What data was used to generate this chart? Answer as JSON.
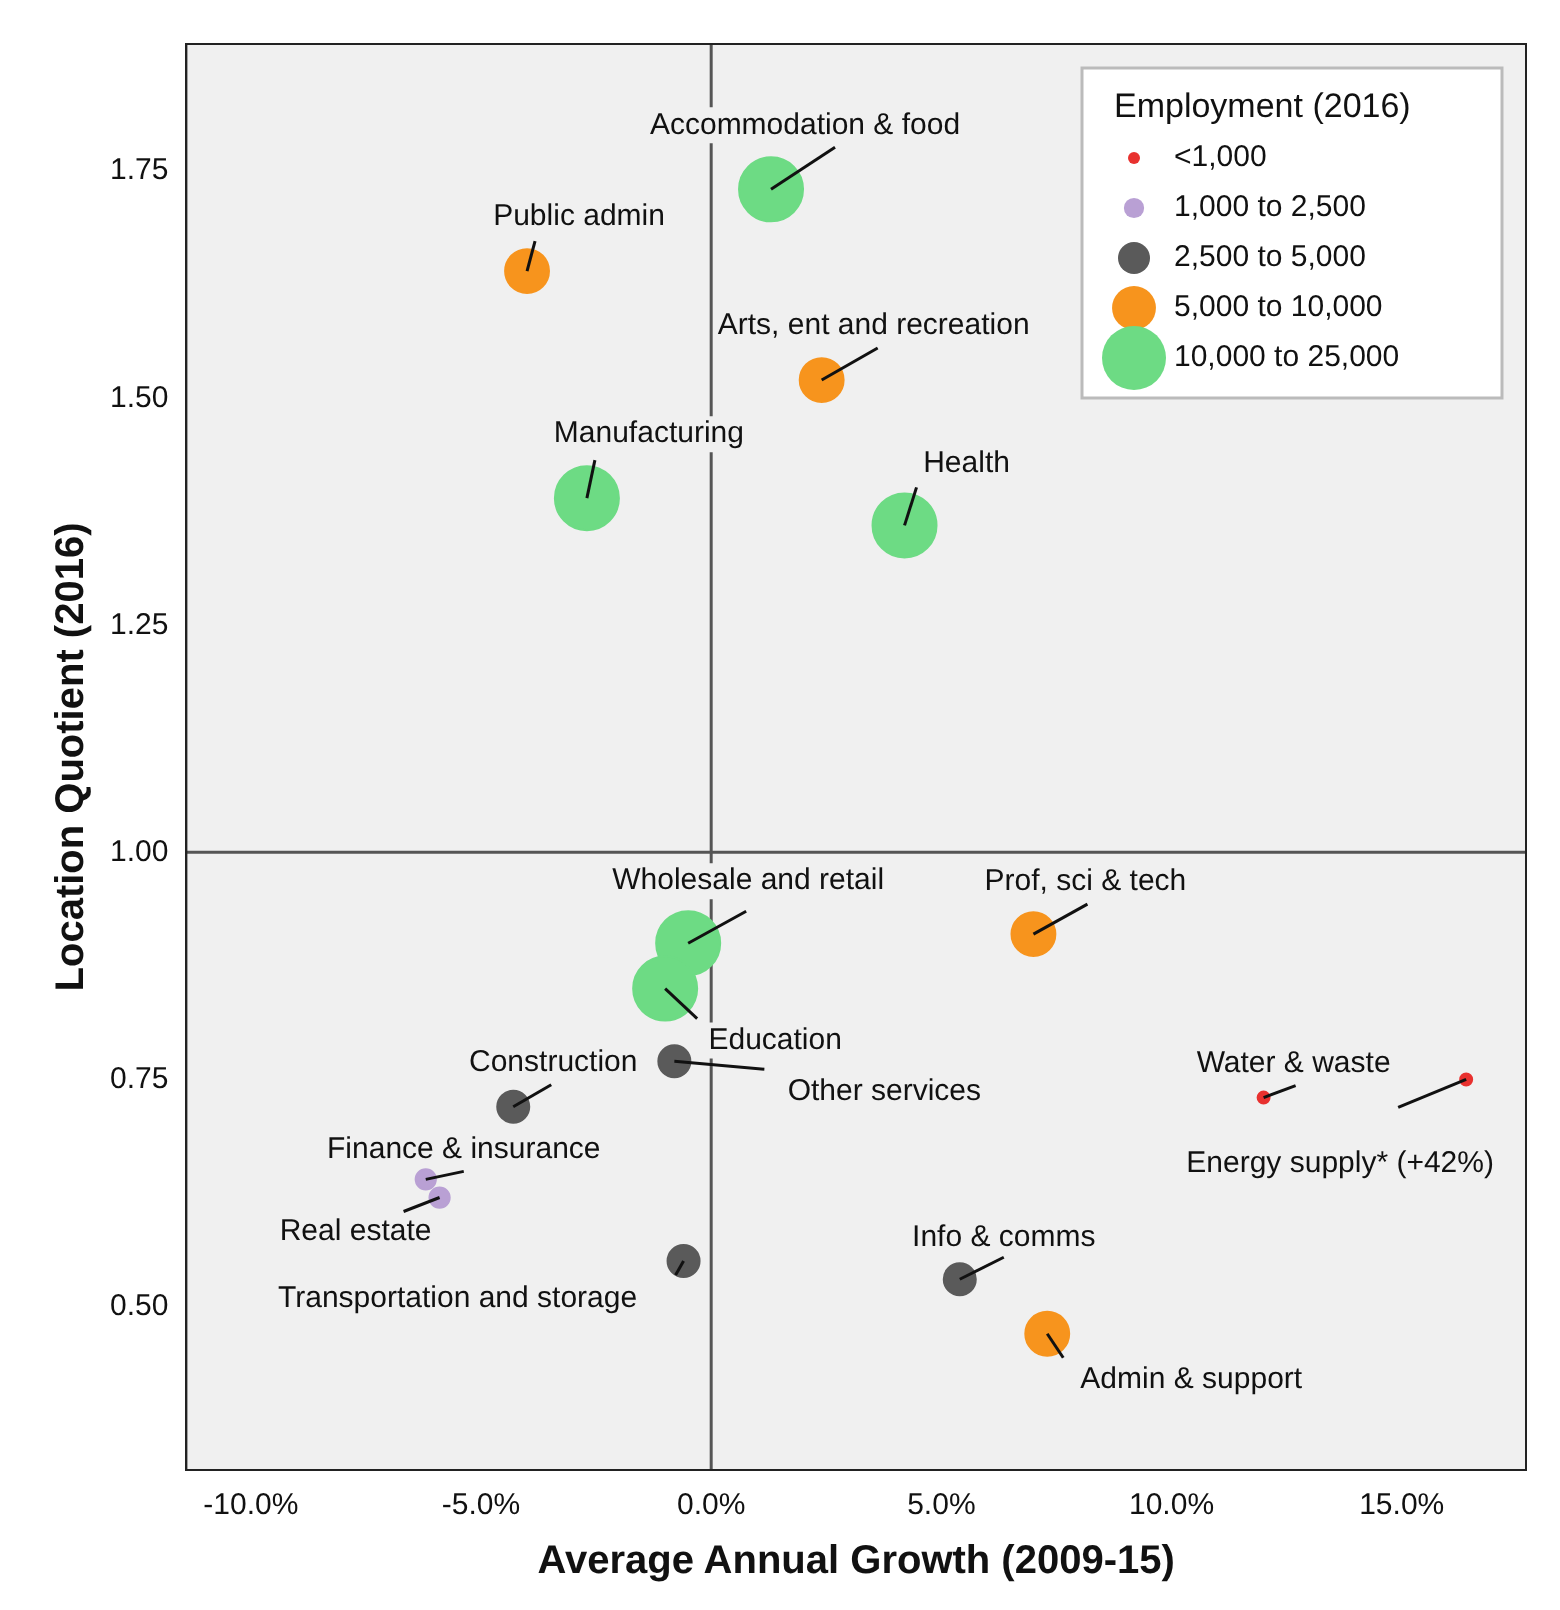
{
  "chart_data": {
    "type": "bubble",
    "xlabel": "Average Annual Growth (2009-15)",
    "ylabel": "Location Quotient (2016)",
    "legend_title": "Employment (2016)",
    "legend": "top right",
    "grid": false,
    "marker": "circle",
    "xlim": [
      -11.4,
      17.7
    ],
    "ylim": [
      0.32,
      1.89
    ],
    "xticks": [
      {
        "value": -10,
        "label": "-10.0%"
      },
      {
        "value": -5,
        "label": "-5.0%"
      },
      {
        "value": 0,
        "label": "0.0%"
      },
      {
        "value": 5,
        "label": "5.0%"
      },
      {
        "value": 10,
        "label": "10.0%"
      },
      {
        "value": 15,
        "label": "15.0%"
      }
    ],
    "yticks": [
      {
        "value": 0.5,
        "label": "0.50"
      },
      {
        "value": 0.75,
        "label": "0.75"
      },
      {
        "value": 1,
        "label": "1.00"
      },
      {
        "value": 1.25,
        "label": "1.25"
      },
      {
        "value": 1.5,
        "label": "1.50"
      },
      {
        "value": 1.75,
        "label": "1.75"
      }
    ],
    "ref_lines": [
      {
        "axis": "x",
        "value": 0,
        "color": "#555555"
      },
      {
        "axis": "y",
        "value": 1,
        "color": "#555555"
      }
    ],
    "series": [
      {
        "name": "<1,000",
        "color": "#e8312f",
        "x": [
          12.0,
          16.4
        ],
        "values": [
          0.73,
          0.75
        ],
        "sizes": [
          0.035,
          0.035
        ]
      },
      {
        "name": "1,000 to 2,500",
        "color": "#b9a0d4",
        "x": [
          -6.2,
          -5.9
        ],
        "values": [
          0.64,
          0.62
        ],
        "sizes": [
          0.1,
          0.1
        ]
      },
      {
        "name": "2,500 to 5,000",
        "color": "#5a5a5a",
        "x": [
          -0.8,
          -4.3,
          -0.6,
          5.4
        ],
        "values": [
          0.77,
          0.72,
          0.55,
          0.53
        ],
        "sizes": [
          0.25,
          0.25,
          0.25,
          0.25
        ]
      },
      {
        "name": "5,000 to 10,000",
        "color": "#f7941d",
        "x": [
          -4.0,
          2.4,
          7.0,
          7.3
        ],
        "values": [
          1.64,
          1.52,
          0.91,
          0.47
        ],
        "sizes": [
          0.47,
          0.47,
          0.47,
          0.47
        ]
      },
      {
        "name": "10,000 to 25,000",
        "color": "#6ddb84",
        "x": [
          1.3,
          -2.7,
          4.2,
          -0.5,
          -1.0
        ],
        "values": [
          1.73,
          1.39,
          1.36,
          0.9,
          0.85
        ],
        "sizes": [
          1,
          1,
          1,
          1,
          1
        ]
      }
    ],
    "annotations": [
      {
        "text": "Accommodation & food",
        "x": 1.3,
        "y": 1.73
      },
      {
        "text": "Public admin",
        "x": -4.0,
        "y": 1.64
      },
      {
        "text": "Arts, ent and recreation",
        "x": 2.4,
        "y": 1.52
      },
      {
        "text": "Manufacturing",
        "x": -2.7,
        "y": 1.39
      },
      {
        "text": "Health",
        "x": 4.2,
        "y": 1.36
      },
      {
        "text": "Wholesale and retail",
        "x": -0.5,
        "y": 0.9
      },
      {
        "text": "Education",
        "x": -1.0,
        "y": 0.85
      },
      {
        "text": "Prof, sci & tech",
        "x": 7.0,
        "y": 0.91
      },
      {
        "text": "Other services",
        "x": -0.8,
        "y": 0.77
      },
      {
        "text": "Construction",
        "x": -4.3,
        "y": 0.72
      },
      {
        "text": "Finance & insurance",
        "x": -6.2,
        "y": 0.64
      },
      {
        "text": "Real estate",
        "x": -5.9,
        "y": 0.62
      },
      {
        "text": "Transportation and storage",
        "x": -0.6,
        "y": 0.55
      },
      {
        "text": "Info & comms",
        "x": 5.4,
        "y": 0.53
      },
      {
        "text": "Admin & support",
        "x": 7.3,
        "y": 0.47
      },
      {
        "text": "Water & waste",
        "x": 12.0,
        "y": 0.73
      },
      {
        "text": "Energy supply* (+42%)",
        "x": 16.4,
        "y": 0.75
      }
    ]
  }
}
